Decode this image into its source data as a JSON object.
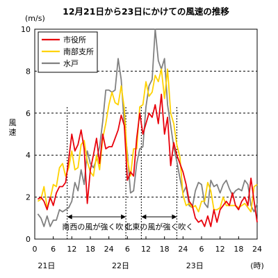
{
  "chart_data": {
    "type": "line",
    "title": "12月21日から23日にかけての風速の推移",
    "ylabel": "風速",
    "yunit": "(m/s)",
    "xunit": "(時)",
    "ylim": [
      0,
      10
    ],
    "xlim": [
      0,
      72
    ],
    "yticks": [
      0,
      2,
      4,
      6,
      8,
      10
    ],
    "xtick_labels": [
      "0",
      "6",
      "12",
      "18",
      "24",
      "6",
      "12",
      "18",
      "24",
      "6",
      "12",
      "18",
      "24"
    ],
    "day_labels": [
      {
        "x": 0,
        "label": "21日"
      },
      {
        "x": 24,
        "label": "22日"
      },
      {
        "x": 48,
        "label": "23日"
      }
    ],
    "grid_y": true,
    "legend_position": "top-left",
    "annotations": [
      {
        "text": "南西の風が強く吹く",
        "x_start": 10.5,
        "x_end": 29.5
      },
      {
        "text": "北東の風が強く吹く",
        "x_start": 34.5,
        "x_end": 46
      }
    ],
    "dividers": [
      10.5,
      29.5,
      34.5,
      46
    ],
    "series": [
      {
        "name": "市役所",
        "color": "#e8000b",
        "x": [
          1,
          2,
          3,
          4,
          5,
          6,
          7,
          8,
          9,
          10,
          11,
          12,
          13,
          14,
          15,
          16,
          17,
          18,
          19,
          20,
          21,
          22,
          23,
          24,
          25,
          26,
          27,
          28,
          29,
          30,
          31,
          32,
          33,
          34,
          35,
          36,
          37,
          38,
          39,
          40,
          41,
          42,
          43,
          44,
          45,
          46,
          47,
          48,
          49,
          50,
          51,
          52,
          53,
          54,
          55,
          56,
          57,
          58,
          59,
          60,
          61,
          62,
          63,
          64,
          65,
          66,
          67,
          68,
          69,
          70,
          71,
          72
        ],
        "y": [
          1.9,
          2.0,
          1.8,
          1.4,
          2.0,
          1.6,
          2.2,
          2.5,
          2.5,
          2.7,
          3.8,
          5.0,
          4.2,
          4.5,
          5.2,
          4.3,
          1.7,
          3.3,
          4.0,
          4.8,
          3.6,
          5.0,
          4.3,
          4.4,
          4.4,
          4.8,
          5.2,
          5.9,
          5.4,
          2.8,
          3.2,
          3.0,
          4.8,
          6.0,
          5.0,
          5.5,
          6.0,
          5.8,
          6.4,
          5.5,
          6.9,
          5.0,
          5.8,
          3.5,
          4.6,
          4.0,
          3.6,
          3.2,
          2.6,
          1.8,
          1.6,
          1.0,
          0.8,
          0.9,
          0.6,
          1.1,
          0.6,
          1.4,
          0.8,
          1.4,
          1.6,
          1.8,
          1.6,
          2.2,
          1.6,
          1.4,
          1.8,
          2.0,
          1.6,
          2.9,
          1.8,
          0.8
        ]
      },
      {
        "name": "南部支所",
        "color": "#ffd200",
        "x": [
          1,
          2,
          3,
          4,
          5,
          6,
          7,
          8,
          9,
          10,
          11,
          12,
          13,
          14,
          15,
          16,
          17,
          18,
          19,
          20,
          21,
          22,
          23,
          24,
          25,
          26,
          27,
          28,
          29,
          30,
          31,
          32,
          33,
          34,
          35,
          36,
          37,
          38,
          39,
          40,
          41,
          42,
          43,
          44,
          45,
          46,
          47,
          48,
          49,
          50,
          51,
          52,
          53,
          54,
          55,
          56,
          57,
          58,
          59,
          60,
          61,
          62,
          63,
          64,
          65,
          66,
          67,
          68,
          69,
          70,
          71,
          72
        ],
        "y": [
          1.8,
          1.9,
          2.5,
          1.5,
          1.9,
          2.6,
          2.5,
          3.4,
          3.6,
          3.0,
          3.4,
          4.2,
          3.3,
          3.4,
          4.5,
          4.7,
          3.7,
          3.2,
          3.0,
          4.0,
          3.3,
          4.8,
          5.5,
          6.4,
          7.0,
          6.5,
          6.4,
          7.3,
          6.2,
          3.8,
          3.0,
          4.3,
          4.3,
          6.3,
          6.4,
          7.5,
          6.8,
          7.0,
          7.8,
          7.5,
          8.1,
          6.7,
          8.1,
          6.0,
          5.5,
          4.5,
          3.9,
          2.1,
          1.6,
          1.7,
          1.5,
          1.6,
          1.3,
          1.8,
          1.8,
          2.7,
          2.3,
          1.4,
          1.4,
          1.5,
          2.0,
          1.6,
          1.6,
          1.6,
          1.6,
          1.5,
          1.6,
          1.7,
          1.5,
          1.3,
          2.5,
          2.6
        ]
      },
      {
        "name": "水戸",
        "color": "#808080",
        "x": [
          1,
          2,
          3,
          4,
          5,
          6,
          7,
          8,
          9,
          10,
          11,
          12,
          13,
          14,
          15,
          16,
          17,
          18,
          19,
          20,
          21,
          22,
          23,
          24,
          25,
          26,
          27,
          28,
          29,
          30,
          31,
          32,
          33,
          34,
          35,
          36,
          37,
          38,
          39,
          40,
          41,
          42,
          43,
          44,
          45,
          46,
          47,
          48,
          49,
          50,
          51,
          52,
          53,
          54,
          55,
          56,
          57,
          58,
          59,
          60,
          61,
          62,
          63,
          64,
          65,
          66,
          67,
          68,
          69,
          70,
          71,
          72
        ],
        "y": [
          1.2,
          1.0,
          0.6,
          1.1,
          0.6,
          0.9,
          0.9,
          1.4,
          1.3,
          1.4,
          1.5,
          1.8,
          2.7,
          2.3,
          3.3,
          2.6,
          4.2,
          3.6,
          3.4,
          3.8,
          4.4,
          5.6,
          7.1,
          7.1,
          7.0,
          7.1,
          8.6,
          7.6,
          5.4,
          4.1,
          2.2,
          2.3,
          3.6,
          4.3,
          4.4,
          6.3,
          7.3,
          7.6,
          10.0,
          8.5,
          8.1,
          8.6,
          6.4,
          5.4,
          4.4,
          3.7,
          2.9,
          2.2,
          2.5,
          1.6,
          1.5,
          2.3,
          2.7,
          2.6,
          1.7,
          1.5,
          2.8,
          2.5,
          2.6,
          2.2,
          2.6,
          2.8,
          2.4,
          2.1,
          2.3,
          2.4,
          2.3,
          2.8,
          2.6,
          1.6,
          1.3,
          1.7
        ]
      }
    ]
  }
}
